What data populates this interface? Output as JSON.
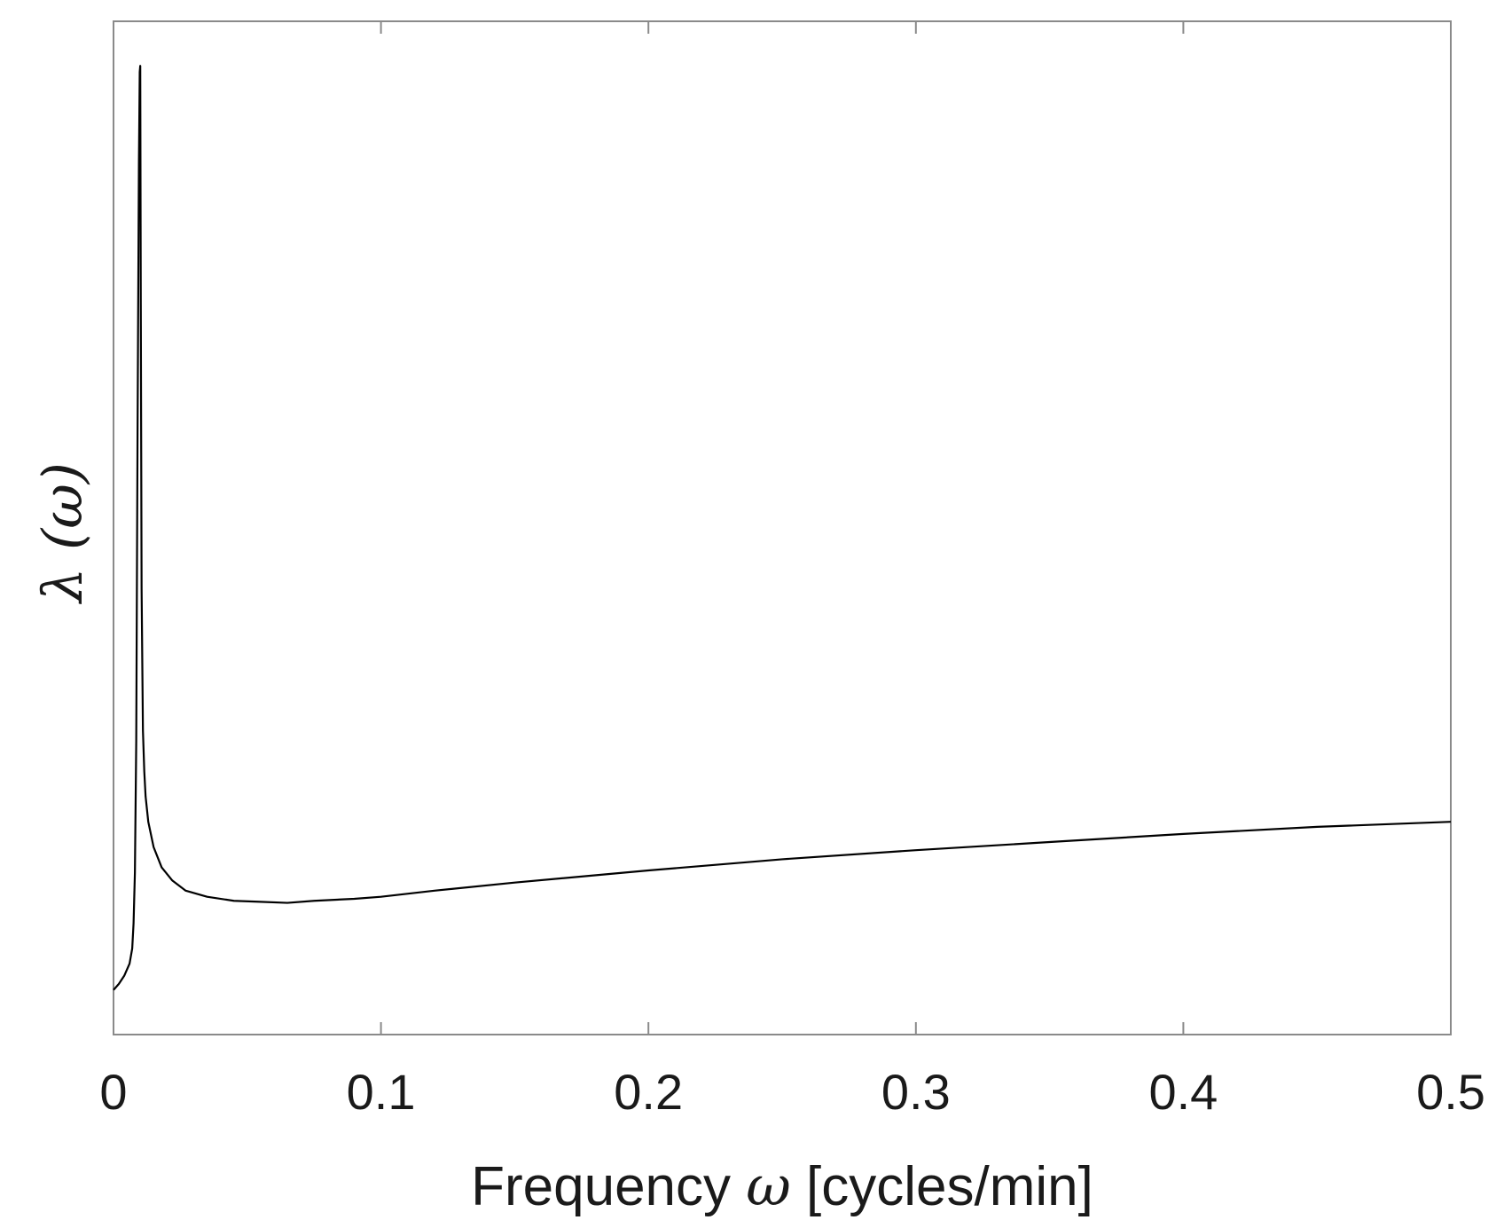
{
  "chart_data": {
    "type": "line",
    "title": "",
    "xlabel_parts": [
      "Frequency ",
      "ω",
      " [cycles/min]"
    ],
    "ylabel_parts": [
      "λ ",
      "(ω)"
    ],
    "xlim": [
      0,
      0.5
    ],
    "ylim": [
      0,
      1
    ],
    "x_ticks": [
      0,
      0.1,
      0.2,
      0.3,
      0.4,
      0.5
    ],
    "x_tick_labels": [
      "0",
      "0.1",
      "0.2",
      "0.3",
      "0.4",
      "0.5"
    ],
    "y_tick_labels": [],
    "grid": false,
    "legend": "none",
    "line_color": "#000000",
    "axis_color": "#8a8a8a",
    "series": [
      {
        "x": [
          0,
          0.002,
          0.004,
          0.006,
          0.007,
          0.0075,
          0.008,
          0.0085,
          0.009,
          0.0095,
          0.0098,
          0.01,
          0.0102,
          0.0105,
          0.011,
          0.0115,
          0.012,
          0.013,
          0.015,
          0.018,
          0.022,
          0.027,
          0.035,
          0.045,
          0.055,
          0.065,
          0.075,
          0.09,
          0.1,
          0.12,
          0.15,
          0.2,
          0.25,
          0.3,
          0.35,
          0.4,
          0.45,
          0.5
        ],
        "y": [
          0.044,
          0.05,
          0.058,
          0.07,
          0.085,
          0.11,
          0.16,
          0.29,
          0.6,
          0.86,
          0.95,
          0.956,
          0.72,
          0.44,
          0.3,
          0.26,
          0.235,
          0.21,
          0.185,
          0.165,
          0.152,
          0.142,
          0.136,
          0.132,
          0.131,
          0.13,
          0.132,
          0.134,
          0.136,
          0.142,
          0.15,
          0.162,
          0.173,
          0.182,
          0.19,
          0.198,
          0.205,
          0.21
        ]
      }
    ]
  }
}
